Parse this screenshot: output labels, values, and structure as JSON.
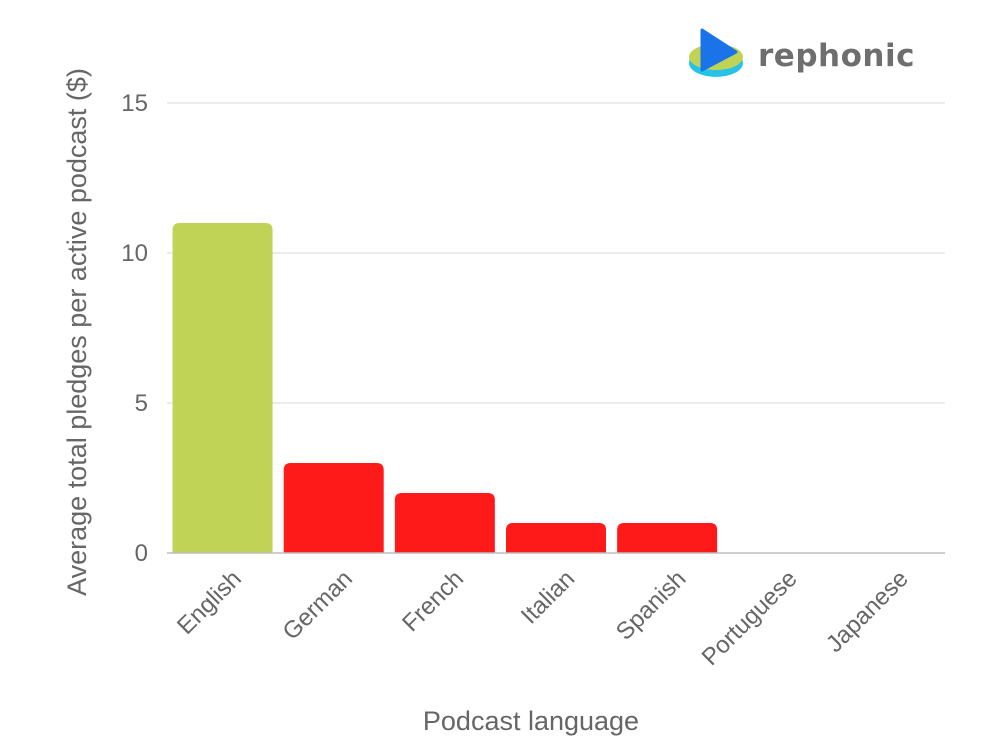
{
  "logo": {
    "text": "rephonic",
    "icon": "play-disc-icon",
    "colors": {
      "play": "#1a73e8",
      "disc_top": "#c0d356",
      "disc_side": "#27c3e6"
    }
  },
  "colors": {
    "highlight": "#c0d356",
    "default": "#ff1a1a",
    "grid": "#e6e6e6",
    "axis": "#bdbdbd",
    "text": "#666666"
  },
  "chart_data": {
    "type": "bar",
    "categories": [
      "English",
      "German",
      "French",
      "Italian",
      "Spanish",
      "Portuguese",
      "Japanese"
    ],
    "values": [
      11,
      3,
      2,
      1,
      1,
      0,
      0
    ],
    "highlight_index": 0,
    "xlabel": "Podcast language",
    "ylabel": "Average total pledges per active podcast ($)",
    "ylim": [
      0,
      15
    ],
    "yticks": [
      0,
      5,
      10,
      15
    ],
    "grid": true,
    "legend": "none"
  }
}
